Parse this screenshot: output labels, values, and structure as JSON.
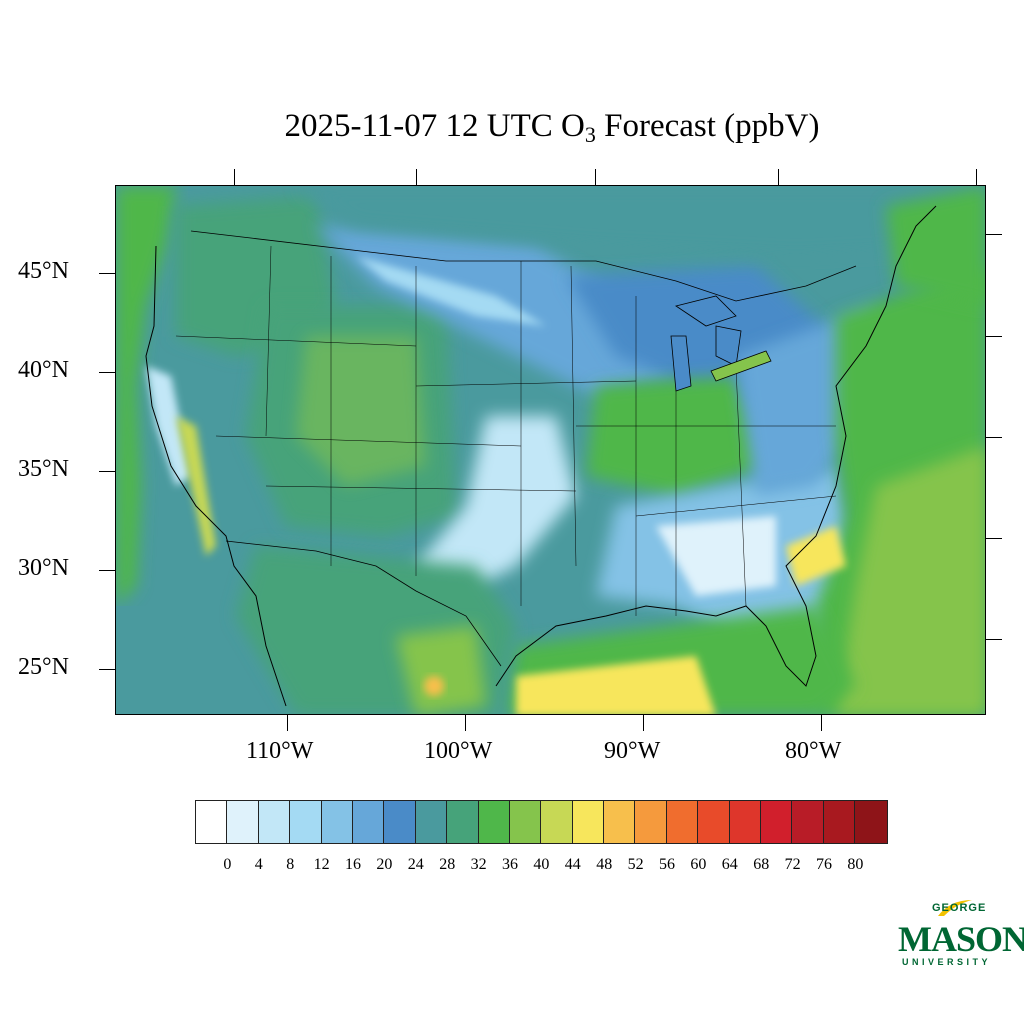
{
  "title": {
    "prefix": "2025-11-07 12 UTC O",
    "subscript": "3",
    "suffix": " Forecast (ppbV)"
  },
  "map": {
    "latitude_labels": [
      "45°N",
      "40°N",
      "35°N",
      "30°N",
      "25°N"
    ],
    "longitude_labels": [
      "110°W",
      "100°W",
      "90°W",
      "80°W"
    ]
  },
  "colorbar": {
    "colors": [
      "#ffffff",
      "#dff2fb",
      "#c2e7f7",
      "#a4daf3",
      "#84c2e6",
      "#66a7d9",
      "#4a8bc8",
      "#4a9a9e",
      "#46a37a",
      "#4fb74a",
      "#85c44c",
      "#c7d855",
      "#f7e65c",
      "#f7bf4c",
      "#f59a3d",
      "#f06d2e",
      "#e84b2a",
      "#de362b",
      "#d11f2c",
      "#b81c27",
      "#a8191f",
      "#8e1418"
    ],
    "labels": [
      "0",
      "4",
      "8",
      "12",
      "16",
      "20",
      "24",
      "28",
      "32",
      "36",
      "40",
      "44",
      "48",
      "52",
      "56",
      "60",
      "64",
      "68",
      "72",
      "76",
      "80"
    ]
  },
  "logo": {
    "line1": "GEORGE",
    "line2": "MASON",
    "line3": "UNIVERSITY",
    "color": "#006633",
    "accent": "#f2c200"
  }
}
